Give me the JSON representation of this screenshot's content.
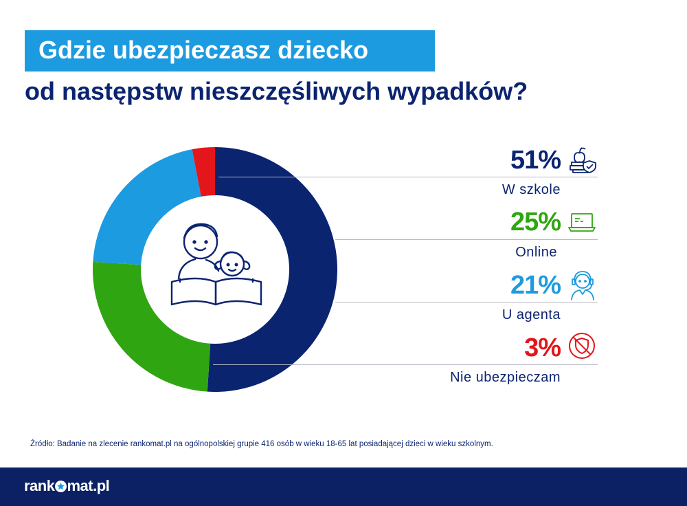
{
  "header": {
    "title_line1": "Gdzie ubezpieczasz dziecko",
    "title_line2": "od następstw nieszczęśliwych wypadków?"
  },
  "colors": {
    "navy": "#0b2470",
    "light_blue": "#1d9be0",
    "green": "#2fa512",
    "red": "#e3161b"
  },
  "chart_data": {
    "type": "pie",
    "subtype": "donut",
    "title": "Gdzie ubezpieczasz dziecko od następstw nieszczęśliwych wypadków?",
    "unit": "%",
    "slices": [
      {
        "label": "W szkole",
        "value": 51,
        "value_label": "51%",
        "color": "#0b2470",
        "icon": "school-icon"
      },
      {
        "label": "Online",
        "value": 25,
        "value_label": "25%",
        "color": "#2fa512",
        "icon": "laptop-icon"
      },
      {
        "label": "U agenta",
        "value": 21,
        "value_label": "21%",
        "color": "#1d9be0",
        "icon": "agent-icon"
      },
      {
        "label": "Nie ubezpieczam",
        "value": 3,
        "value_label": "3%",
        "color": "#e3161b",
        "icon": "no-shield-icon"
      }
    ],
    "start": "top",
    "direction": "clockwise",
    "center_icon": "parent-child-reading-icon"
  },
  "footer": {
    "source": "Źródło: Badanie na zlecenie rankomat.pl na ogólnopolskiej grupie 416 osób w wieku 18-65 lat posiadającej dzieci w wieku szkolnym.",
    "logo_text_before": "rank",
    "logo_text_after": "mat.pl",
    "logo_icon": "star-o-icon"
  }
}
